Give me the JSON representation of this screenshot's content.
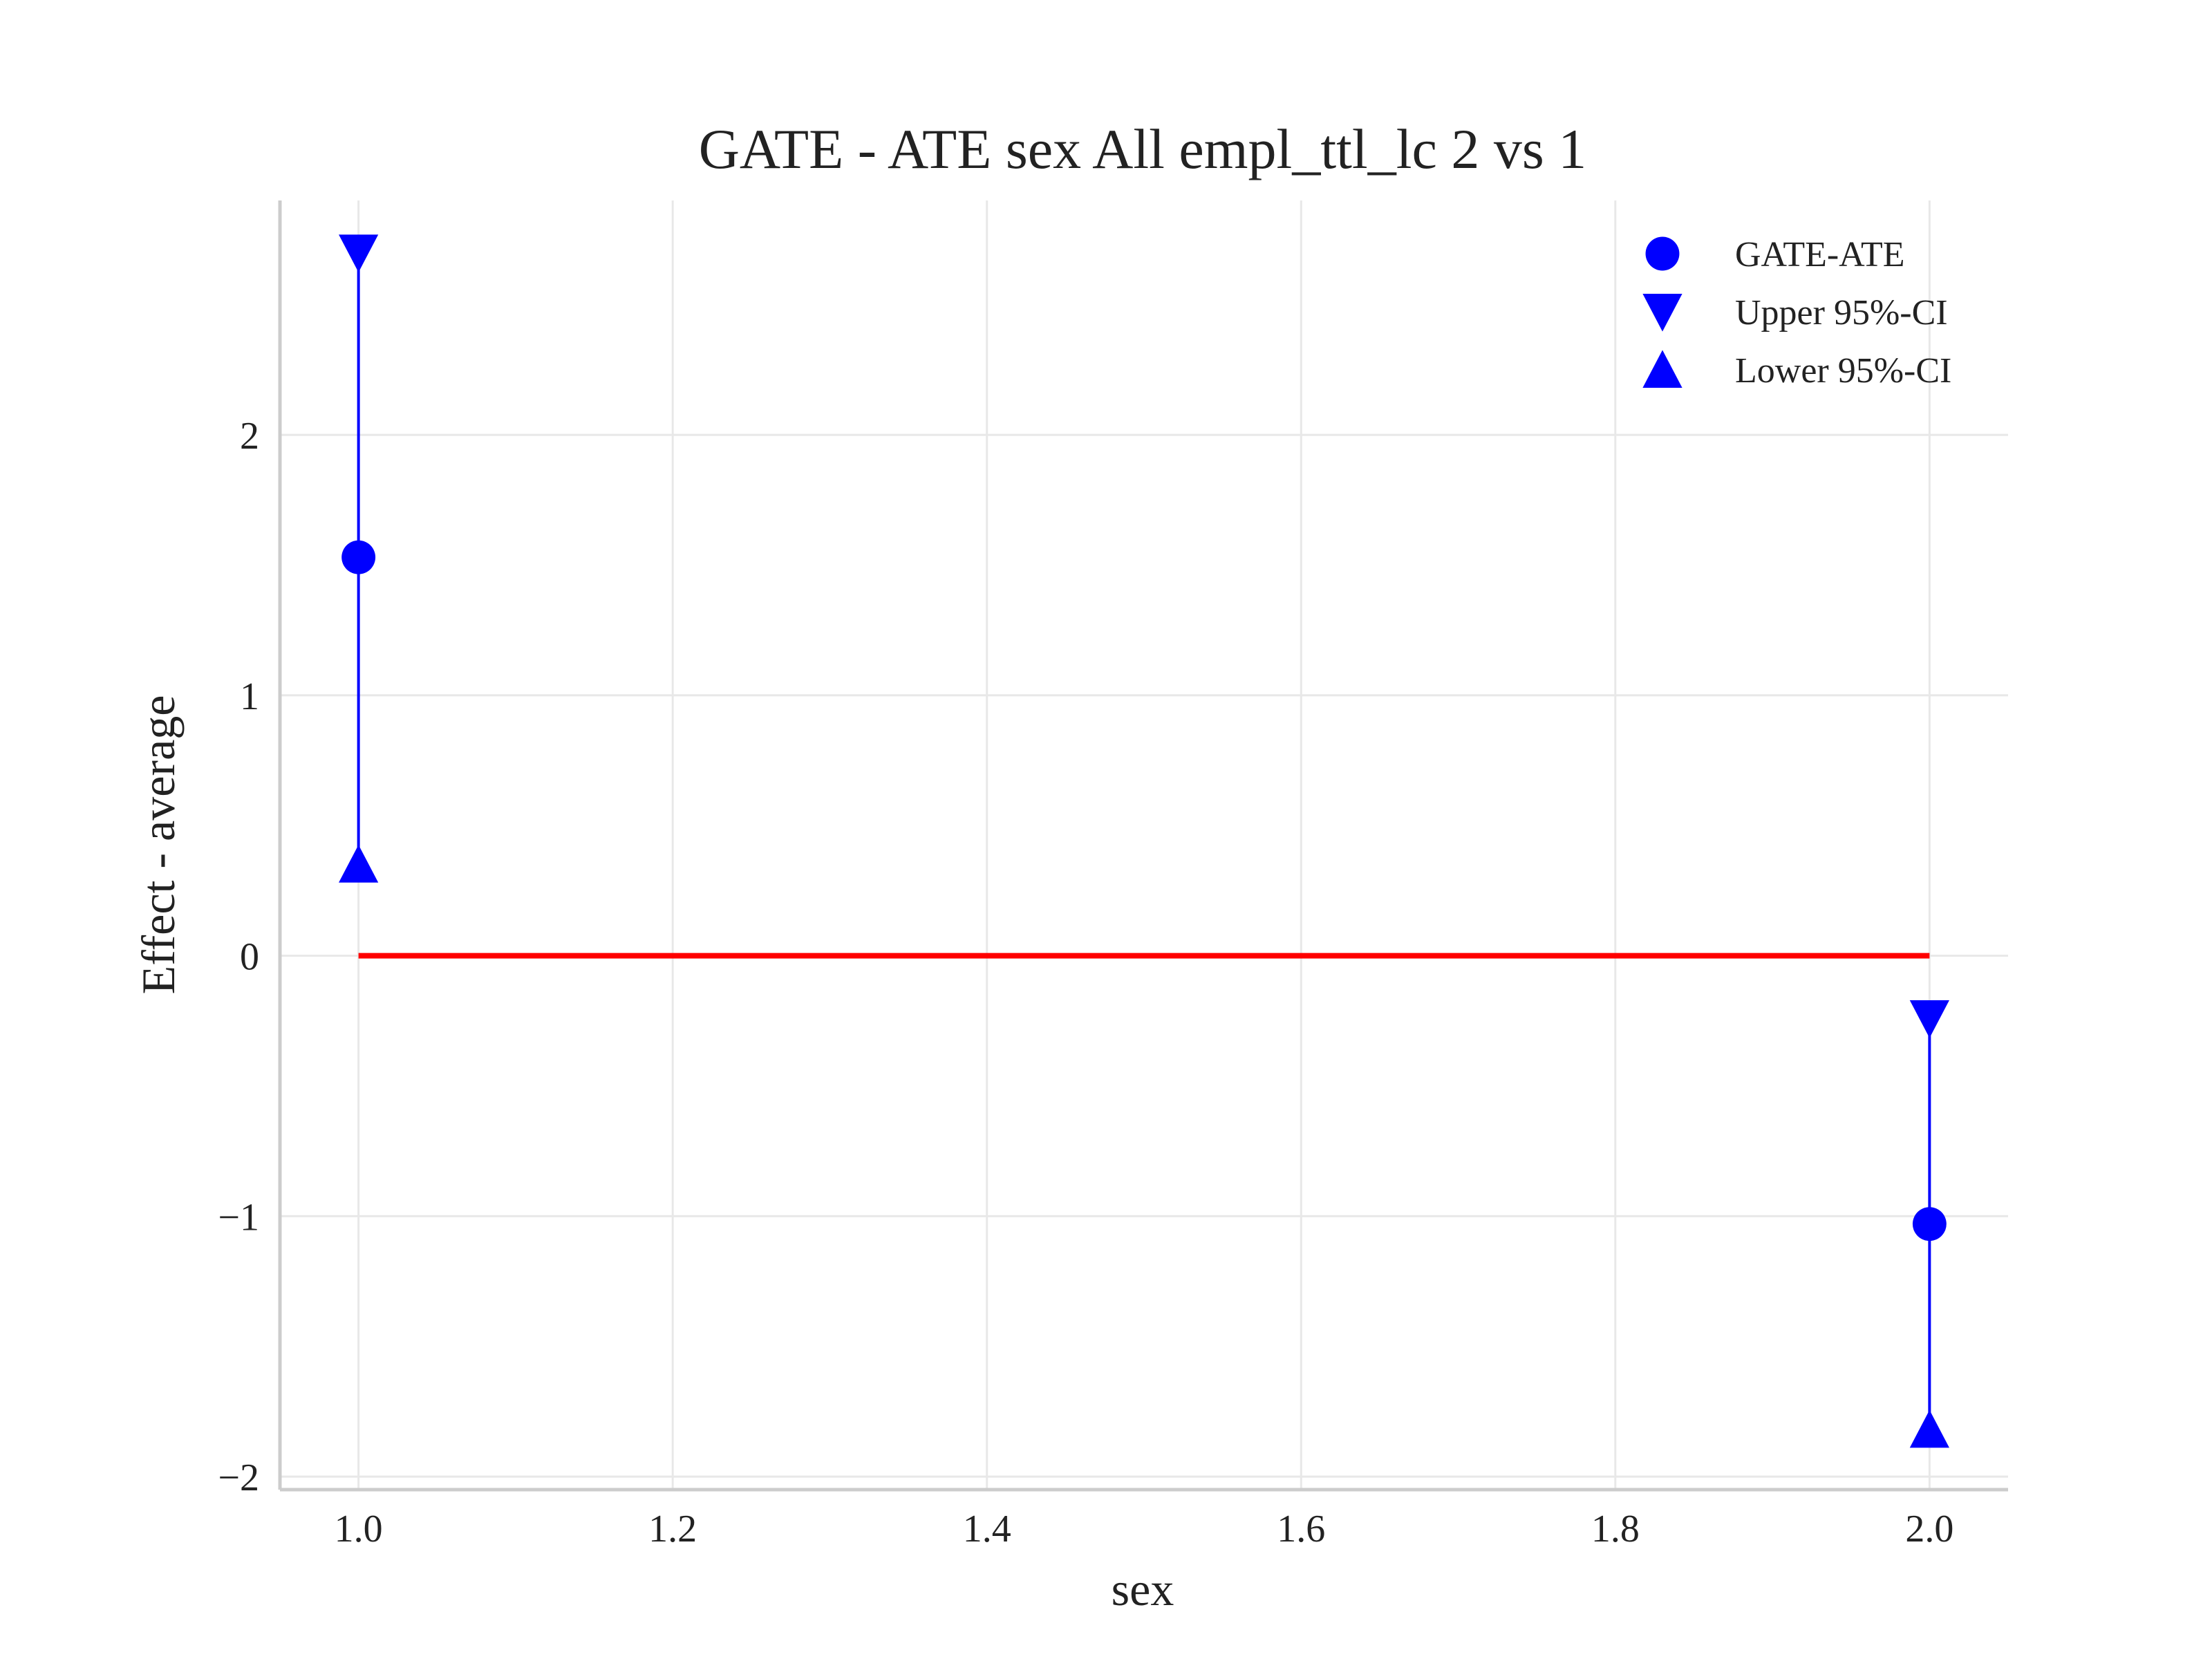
{
  "chart_data": {
    "type": "scatter",
    "title": "GATE - ATE sex All empl_ttl_lc  2 vs 1",
    "xlabel": "sex",
    "ylabel": "Effect - average",
    "xlim": [
      0.95,
      2.05
    ],
    "ylim": [
      -2.05,
      2.9
    ],
    "x_ticks": [
      1.0,
      1.2,
      1.4,
      1.6,
      1.8,
      2.0
    ],
    "x_tick_labels": [
      "1.0",
      "1.2",
      "1.4",
      "1.6",
      "1.8",
      "2.0"
    ],
    "y_ticks": [
      -2,
      -1,
      0,
      1,
      2
    ],
    "y_tick_labels": [
      "−2",
      "−1",
      "0",
      "1",
      "2"
    ],
    "grid": true,
    "legend_position": "top-right",
    "series": [
      {
        "name": "GATE-ATE",
        "marker": "circle",
        "color": "#0000ff",
        "x": [
          1.0,
          2.0
        ],
        "y": [
          1.53,
          -1.03
        ]
      },
      {
        "name": "Upper 95%-CI",
        "marker": "triangle-down",
        "color": "#0000ff",
        "x": [
          1.0,
          2.0
        ],
        "y": [
          2.7,
          -0.24
        ]
      },
      {
        "name": "Lower 95%-CI",
        "marker": "triangle-up",
        "color": "#0000ff",
        "x": [
          1.0,
          2.0
        ],
        "y": [
          0.35,
          -1.82
        ]
      }
    ],
    "reference_line": {
      "color": "#ff0000",
      "x": [
        1.0,
        2.0
      ],
      "y": [
        0.0,
        0.0
      ]
    }
  }
}
